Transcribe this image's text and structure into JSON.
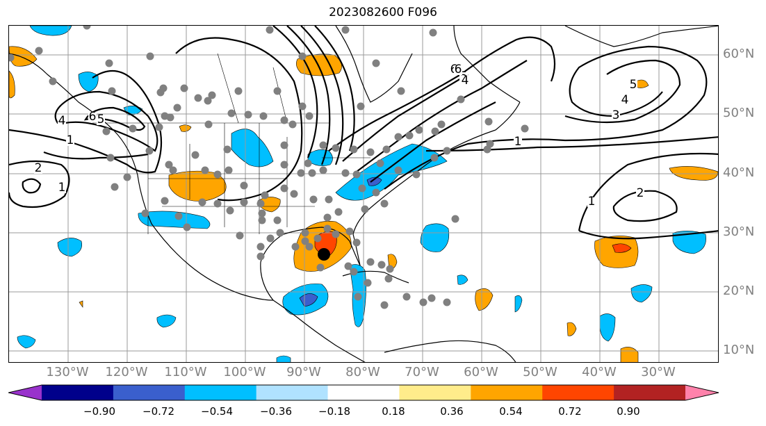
{
  "title": "2023082600 F096",
  "lat_labels": [
    {
      "text": "60°N",
      "lat": 60
    },
    {
      "text": "50°N",
      "lat": 50
    },
    {
      "text": "40°N",
      "lat": 40
    },
    {
      "text": "30°N",
      "lat": 30
    },
    {
      "text": "20°N",
      "lat": 20
    },
    {
      "text": "10°N",
      "lat": 10
    }
  ],
  "lon_labels": [
    {
      "text": "130°W",
      "lon": -130
    },
    {
      "text": "120°W",
      "lon": -120
    },
    {
      "text": "110°W",
      "lon": -110
    },
    {
      "text": "100°W",
      "lon": -100
    },
    {
      "text": "90°W",
      "lon": -90
    },
    {
      "text": "80°W",
      "lon": -80
    },
    {
      "text": "70°W",
      "lon": -70
    },
    {
      "text": "60°W",
      "lon": -60
    },
    {
      "text": "50°W",
      "lon": -50
    },
    {
      "text": "40°W",
      "lon": -40
    },
    {
      "text": "30°W",
      "lon": -30
    }
  ],
  "colorbar": {
    "tick_labels": [
      "−0.90",
      "−0.72",
      "−0.54",
      "−0.36",
      "−0.18",
      "0.18",
      "0.36",
      "0.54",
      "0.72",
      "0.90"
    ],
    "colors": [
      "#9932cc",
      "#00008b",
      "#3a5fcd",
      "#00bfff",
      "#b0e2ff",
      "#ffffff",
      "#ffec8b",
      "#ffa500",
      "#ff4500",
      "#b22222",
      "#ff82ab"
    ]
  },
  "contour_labels": [
    "2",
    "1",
    "1",
    "4",
    "5",
    "6",
    "6",
    "5",
    "4",
    "4",
    "3",
    "5",
    "1",
    "1",
    "2",
    "6"
  ],
  "shading_colors": {
    "blue": "#00bfff",
    "darkblue": "#3a5fcd",
    "orange": "#ffa500",
    "red": "#ff4500"
  },
  "marker_colors": {
    "gray_dots": "#808080",
    "black_dot": "#000000"
  }
}
